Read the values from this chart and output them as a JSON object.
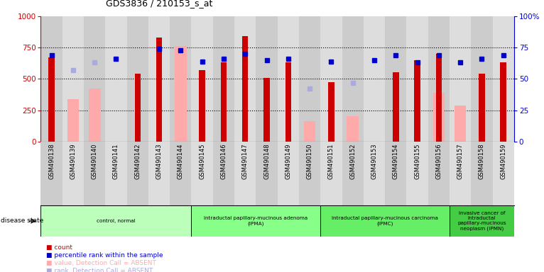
{
  "title": "GDS3836 / 210153_s_at",
  "samples": [
    "GSM490138",
    "GSM490139",
    "GSM490140",
    "GSM490141",
    "GSM490142",
    "GSM490143",
    "GSM490144",
    "GSM490145",
    "GSM490146",
    "GSM490147",
    "GSM490148",
    "GSM490149",
    "GSM490150",
    "GSM490151",
    "GSM490152",
    "GSM490153",
    "GSM490154",
    "GSM490155",
    "GSM490156",
    "GSM490157",
    "GSM490158",
    "GSM490159"
  ],
  "count": [
    670,
    null,
    null,
    null,
    540,
    830,
    null,
    570,
    630,
    840,
    510,
    630,
    null,
    475,
    null,
    null,
    555,
    650,
    700,
    null,
    540,
    635
  ],
  "count_absent": [
    null,
    340,
    420,
    null,
    null,
    null,
    760,
    null,
    null,
    null,
    null,
    null,
    160,
    null,
    200,
    null,
    null,
    null,
    390,
    285,
    null,
    null
  ],
  "percentile": [
    69,
    null,
    null,
    66,
    null,
    74,
    73,
    64,
    66,
    70,
    65,
    66,
    null,
    64,
    null,
    65,
    69,
    63,
    69,
    63,
    66,
    69
  ],
  "percentile_absent": [
    null,
    57,
    63,
    null,
    null,
    null,
    null,
    null,
    null,
    null,
    null,
    null,
    42,
    null,
    47,
    null,
    null,
    null,
    null,
    null,
    null,
    null
  ],
  "ylim_left": [
    0,
    1000
  ],
  "ylim_right": [
    0,
    100
  ],
  "yticks_left": [
    0,
    250,
    500,
    750,
    1000
  ],
  "yticks_right": [
    0,
    25,
    50,
    75,
    100
  ],
  "groups": [
    {
      "label": "control, normal",
      "start": 0,
      "end": 6,
      "color": "#bbffbb"
    },
    {
      "label": "intraductal papillary-mucinous adenoma\n(IPMA)",
      "start": 7,
      "end": 12,
      "color": "#88ff88"
    },
    {
      "label": "intraductal papillary-mucinous carcinoma\n(IPMC)",
      "start": 13,
      "end": 18,
      "color": "#66ee66"
    },
    {
      "label": "invasive cancer of\nintraductal\npapillary-mucinous\nneoplasm (IPMN)",
      "start": 19,
      "end": 21,
      "color": "#44cc44"
    }
  ],
  "bar_color_red": "#cc0000",
  "bar_color_pink": "#ffaaaa",
  "dot_color_blue": "#0000cc",
  "dot_color_lightblue": "#aaaadd",
  "bg_color": "#ffffff",
  "left_axis_color": "#cc0000",
  "right_axis_color": "#0000cc",
  "col_bg_even": "#cccccc",
  "col_bg_odd": "#dddddd"
}
